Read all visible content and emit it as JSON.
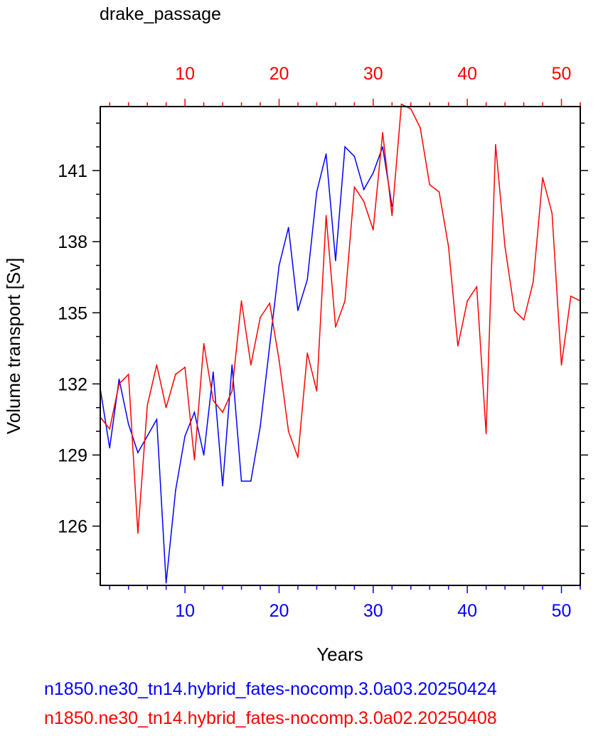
{
  "chart_data": {
    "type": "line",
    "title": "drake_passage",
    "xlabel": "Years",
    "ylabel": "Volume transport [Sv]",
    "xlim": [
      1,
      52
    ],
    "ylim": [
      123.5,
      143.7
    ],
    "yticks_major": [
      126,
      129,
      132,
      135,
      138,
      141
    ],
    "xticks_major": [
      10,
      20,
      30,
      40,
      50
    ],
    "grid": false,
    "colors": {
      "blue": "#0000ff",
      "red": "#ff0000",
      "axis": "#000000"
    },
    "series": [
      {
        "name": "n1850.ne30_tn14.hybrid_fates-nocomp.3.0a03.20250424",
        "color": "#0000ff",
        "axis": "bottom",
        "x": [
          1,
          2,
          3,
          4,
          5,
          6,
          7,
          8,
          9,
          10,
          11,
          12,
          13,
          14,
          15,
          16,
          17,
          18,
          19,
          20,
          21,
          22,
          23,
          24,
          25,
          26,
          27,
          28,
          29,
          30,
          31,
          32
        ],
        "values": [
          131.8,
          129.3,
          132.2,
          130.3,
          129.1,
          129.8,
          130.5,
          123.6,
          127.5,
          129.8,
          130.8,
          129.0,
          132.5,
          127.7,
          132.8,
          127.9,
          127.9,
          130.2,
          133.6,
          137.0,
          138.6,
          135.1,
          136.4,
          140.1,
          141.7,
          137.2,
          142.0,
          141.6,
          140.2,
          140.9,
          142.0,
          139.5
        ]
      },
      {
        "name": "n1850.ne30_tn14.hybrid_fates-nocomp.3.0a02.20250408",
        "color": "#ff0000",
        "axis": "top",
        "x": [
          1,
          2,
          3,
          4,
          5,
          6,
          7,
          8,
          9,
          10,
          11,
          12,
          13,
          14,
          15,
          16,
          17,
          18,
          19,
          20,
          21,
          22,
          23,
          24,
          25,
          26,
          27,
          28,
          29,
          30,
          31,
          32,
          33,
          34,
          35,
          36,
          37,
          38,
          39,
          40,
          41,
          42,
          43,
          44,
          45,
          46,
          47,
          48,
          49,
          50,
          51,
          52
        ],
        "values": [
          130.6,
          130.1,
          132.0,
          132.4,
          125.7,
          131.1,
          132.8,
          131.0,
          132.4,
          132.7,
          128.8,
          133.7,
          131.3,
          130.8,
          131.7,
          135.5,
          132.8,
          134.8,
          135.4,
          133.0,
          130.0,
          128.9,
          133.3,
          131.7,
          139.1,
          134.4,
          135.5,
          140.3,
          139.7,
          138.5,
          142.6,
          139.1,
          143.8,
          143.6,
          142.8,
          140.4,
          140.1,
          137.8,
          133.6,
          135.5,
          136.1,
          129.9,
          142.1,
          137.8,
          135.1,
          134.7,
          136.3,
          140.7,
          139.2,
          132.8,
          135.7,
          135.5
        ]
      }
    ]
  }
}
